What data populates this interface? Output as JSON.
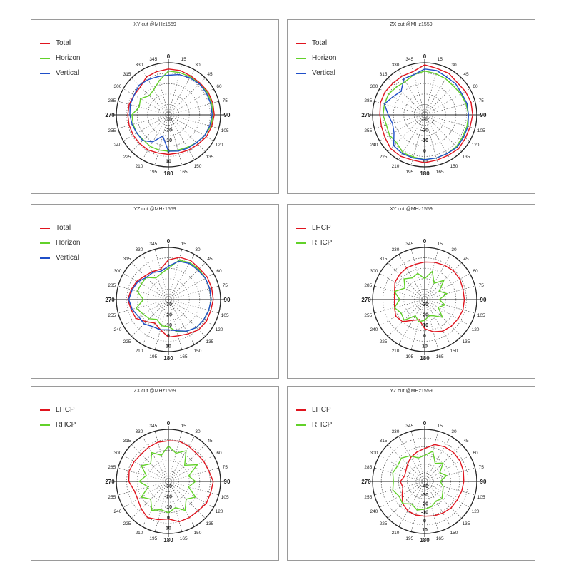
{
  "chart_data": [
    {
      "type": "polar",
      "title": "XY cut @MHz1559",
      "angle_ticks": [
        "0",
        "15",
        "30",
        "45",
        "60",
        "75",
        "90",
        "105",
        "120",
        "135",
        "150",
        "165",
        "180",
        "195",
        "210",
        "225",
        "240",
        "255",
        "270",
        "285",
        "300",
        "315",
        "330",
        "345"
      ],
      "radial_ticks": [
        "-30",
        "-20",
        "-10",
        "0",
        "10"
      ],
      "rlim": [
        -40,
        10
      ],
      "grid": true,
      "legend_position": "top-left",
      "series": [
        {
          "name": "Total",
          "color": "#e0141e",
          "angles": [
            0,
            15,
            30,
            45,
            60,
            75,
            90,
            105,
            120,
            135,
            150,
            165,
            180,
            195,
            210,
            225,
            240,
            255,
            270,
            285,
            300,
            315,
            330,
            345
          ],
          "values": [
            4,
            4,
            3,
            3,
            4,
            4,
            4,
            3,
            2,
            0,
            -1,
            -2,
            -2,
            -2,
            -1,
            -1,
            -1,
            -1,
            -1,
            -1,
            -2,
            -2,
            2,
            3
          ]
        },
        {
          "name": "Horizon",
          "color": "#62d12a",
          "angles": [
            0,
            15,
            30,
            45,
            60,
            75,
            90,
            105,
            120,
            135,
            150,
            165,
            180,
            195,
            210,
            225,
            240,
            255,
            270,
            285,
            300,
            315,
            330,
            345
          ],
          "values": [
            2,
            2,
            2,
            2,
            3,
            3,
            3,
            2,
            0,
            -2,
            -4,
            -5,
            -5,
            -5,
            -5,
            -6,
            -5,
            -5,
            -5,
            -11,
            -9,
            -14,
            -12,
            -6
          ]
        },
        {
          "name": "Vertical",
          "color": "#1f4fc8",
          "angles": [
            0,
            15,
            30,
            45,
            60,
            75,
            90,
            105,
            120,
            135,
            150,
            165,
            180,
            195,
            210,
            225,
            240,
            255,
            270,
            285,
            300,
            315,
            330,
            345
          ],
          "values": [
            -2,
            0,
            1,
            2,
            2,
            2,
            2,
            1,
            0,
            -2,
            -3,
            -4,
            -5,
            -19,
            -10,
            -5,
            -5,
            -4,
            -3,
            -2,
            -2,
            0,
            -1,
            -2
          ]
        }
      ]
    },
    {
      "type": "polar",
      "title": "ZX cut @MHz1559",
      "angle_ticks": [
        "0",
        "15",
        "30",
        "45",
        "60",
        "75",
        "90",
        "105",
        "120",
        "135",
        "150",
        "165",
        "180",
        "195",
        "210",
        "225",
        "240",
        "255",
        "270",
        "285",
        "300",
        "315",
        "330",
        "345"
      ],
      "radial_ticks": [
        "-30",
        "-20",
        "-10",
        "0",
        "10"
      ],
      "rlim": [
        -40,
        10
      ],
      "grid": true,
      "legend_position": "top-left",
      "series": [
        {
          "name": "Total",
          "color": "#e0141e",
          "angles": [
            0,
            15,
            30,
            45,
            60,
            75,
            90,
            105,
            120,
            135,
            150,
            165,
            180,
            195,
            210,
            225,
            240,
            255,
            270,
            285,
            300,
            315,
            330,
            345
          ],
          "values": [
            8,
            6,
            6,
            4,
            5,
            6,
            6,
            5,
            5,
            6,
            5,
            5,
            6,
            5,
            6,
            6,
            4,
            3,
            3,
            4,
            4,
            3,
            3,
            3
          ]
        },
        {
          "name": "Horizon",
          "color": "#62d12a",
          "angles": [
            0,
            15,
            30,
            45,
            60,
            75,
            90,
            105,
            120,
            135,
            150,
            165,
            180,
            195,
            210,
            225,
            240,
            255,
            270,
            285,
            300,
            315,
            330,
            345
          ],
          "values": [
            2,
            1,
            0,
            -1,
            0,
            1,
            2,
            2,
            2,
            3,
            3,
            3,
            3,
            2,
            2,
            -2,
            -1,
            -2,
            0,
            0,
            0,
            -2,
            -3,
            0
          ]
        },
        {
          "name": "Vertical",
          "color": "#1f4fc8",
          "angles": [
            0,
            15,
            30,
            45,
            60,
            75,
            90,
            105,
            120,
            135,
            150,
            165,
            180,
            195,
            210,
            225,
            240,
            255,
            270,
            285,
            300,
            315,
            330,
            345
          ],
          "values": [
            4,
            4,
            2,
            2,
            1,
            2,
            2,
            3,
            3,
            4,
            3,
            3,
            3,
            3,
            3,
            2,
            -6,
            -8,
            -5,
            0,
            -5,
            -8,
            0,
            0
          ]
        }
      ]
    },
    {
      "type": "polar",
      "title": "YZ cut @MHz1559",
      "angle_ticks": [
        "0",
        "15",
        "30",
        "45",
        "60",
        "75",
        "90",
        "105",
        "120",
        "135",
        "150",
        "165",
        "180",
        "195",
        "210",
        "225",
        "240",
        "255",
        "270",
        "285",
        "300",
        "315",
        "330",
        "345"
      ],
      "radial_ticks": [
        "-30",
        "-20",
        "-10",
        "0",
        "10"
      ],
      "rlim": [
        -40,
        10
      ],
      "grid": true,
      "legend_position": "top-left",
      "series": [
        {
          "name": "Total",
          "color": "#e0141e",
          "angles": [
            0,
            15,
            30,
            45,
            60,
            75,
            90,
            105,
            120,
            135,
            150,
            165,
            180,
            195,
            210,
            225,
            240,
            255,
            270,
            285,
            300,
            315,
            330,
            345
          ],
          "values": [
            -2,
            2,
            3,
            2,
            3,
            3,
            3,
            2,
            2,
            1,
            -2,
            -4,
            -4,
            -10,
            -14,
            -10,
            -4,
            -3,
            -1,
            -3,
            -5,
            -8,
            -9,
            -10
          ]
        },
        {
          "name": "Horizon",
          "color": "#62d12a",
          "angles": [
            0,
            15,
            30,
            45,
            60,
            75,
            90,
            105,
            120,
            135,
            150,
            165,
            180,
            195,
            210,
            225,
            240,
            255,
            270,
            285,
            300,
            315,
            330,
            345
          ],
          "values": [
            -10,
            -1,
            1,
            1,
            1,
            1,
            1,
            0,
            -1,
            -2,
            -5,
            -8,
            -14,
            -14,
            -18,
            -14,
            -12,
            -8,
            -16,
            -9,
            -10,
            -10,
            -16,
            -14
          ]
        },
        {
          "name": "Vertical",
          "color": "#1f4fc8",
          "angles": [
            0,
            15,
            30,
            45,
            60,
            75,
            90,
            105,
            120,
            135,
            150,
            165,
            180,
            195,
            210,
            225,
            240,
            255,
            270,
            285,
            300,
            315,
            330,
            345
          ],
          "values": [
            -8,
            -2,
            0,
            0,
            1,
            1,
            1,
            0,
            -1,
            -2,
            -5,
            -9,
            -11,
            -10,
            -10,
            -7,
            -7,
            -4,
            -2,
            -4,
            -6,
            -10,
            -10,
            -12
          ]
        }
      ]
    },
    {
      "type": "polar",
      "title": "XY cut @MHz1559",
      "angle_ticks": [
        "0",
        "15",
        "30",
        "45",
        "60",
        "75",
        "90",
        "105",
        "120",
        "135",
        "150",
        "165",
        "180",
        "195",
        "210",
        "225",
        "240",
        "255",
        "270",
        "285",
        "300",
        "315",
        "330",
        "345"
      ],
      "radial_ticks": [
        "-30",
        "-20",
        "-10",
        "0",
        "10"
      ],
      "rlim": [
        -40,
        10
      ],
      "grid": true,
      "legend_position": "top-left",
      "series": [
        {
          "name": "LHCP",
          "color": "#e0141e",
          "angles": [
            0,
            15,
            30,
            45,
            60,
            75,
            90,
            105,
            120,
            135,
            150,
            165,
            180,
            195,
            210,
            225,
            240,
            255,
            270,
            285,
            300,
            315,
            330,
            345
          ],
          "values": [
            -4,
            -3,
            -2,
            -1,
            -1,
            -2,
            -2,
            -2,
            -3,
            -4,
            -5,
            -8,
            -12,
            -20,
            -17,
            -10,
            -8,
            -10,
            -11,
            -10,
            -7,
            -6,
            -5,
            -5
          ]
        },
        {
          "name": "RHCP",
          "color": "#62d12a",
          "angles": [
            0,
            15,
            30,
            45,
            60,
            75,
            90,
            105,
            120,
            135,
            150,
            165,
            180,
            195,
            210,
            225,
            240,
            255,
            270,
            285,
            300,
            315,
            330,
            345
          ],
          "values": [
            -20,
            -12,
            -22,
            -14,
            -24,
            -18,
            -26,
            -20,
            -25,
            -16,
            -22,
            -24,
            -20,
            -18,
            -22,
            -12,
            -14,
            -10,
            -16,
            -10,
            -18,
            -12,
            -16,
            -14
          ]
        }
      ]
    },
    {
      "type": "polar",
      "title": "ZX cut @MHz1559",
      "angle_ticks": [
        "0",
        "15",
        "30",
        "45",
        "60",
        "75",
        "90",
        "105",
        "120",
        "135",
        "150",
        "165",
        "180",
        "195",
        "210",
        "225",
        "240",
        "255",
        "270",
        "285",
        "300",
        "315",
        "330",
        "345"
      ],
      "radial_ticks": [
        "-30",
        "-20",
        "-10",
        "0",
        "10"
      ],
      "rlim": [
        -40,
        10
      ],
      "grid": true,
      "legend_position": "top-left",
      "series": [
        {
          "name": "LHCP",
          "color": "#e0141e",
          "angles": [
            0,
            15,
            30,
            45,
            60,
            75,
            90,
            105,
            120,
            135,
            150,
            165,
            180,
            195,
            210,
            225,
            240,
            255,
            270,
            285,
            300,
            315,
            330,
            345
          ],
          "values": [
            -1,
            0,
            -1,
            -2,
            -1,
            0,
            3,
            2,
            2,
            0,
            0,
            0,
            -4,
            -2,
            0,
            -3,
            -6,
            -6,
            -2,
            -1,
            -2,
            -3,
            -2,
            -1
          ]
        },
        {
          "name": "RHCP",
          "color": "#62d12a",
          "angles": [
            0,
            15,
            30,
            45,
            60,
            75,
            90,
            105,
            120,
            135,
            150,
            165,
            180,
            195,
            210,
            225,
            240,
            255,
            270,
            285,
            300,
            315,
            330,
            345
          ],
          "values": [
            -6,
            -12,
            -6,
            -18,
            -8,
            -20,
            -14,
            -20,
            -10,
            -16,
            -8,
            -14,
            -10,
            -12,
            -8,
            -16,
            -10,
            -20,
            -12,
            -18,
            -10,
            -16,
            -8,
            -14
          ]
        }
      ]
    },
    {
      "type": "polar",
      "title": "YZ cut @MHz1559",
      "angle_ticks": [
        "0",
        "15",
        "30",
        "45",
        "60",
        "75",
        "90",
        "105",
        "120",
        "135",
        "150",
        "165",
        "180",
        "195",
        "210",
        "225",
        "240",
        "255",
        "270",
        "285",
        "300",
        "315",
        "330",
        "345"
      ],
      "radial_ticks": [
        "-40",
        "-30",
        "-20",
        "-10",
        "0",
        "10"
      ],
      "rlim": [
        -50,
        10
      ],
      "grid": true,
      "legend_position": "top-left",
      "series": [
        {
          "name": "LHCP",
          "color": "#e0141e",
          "angles": [
            0,
            15,
            30,
            45,
            60,
            75,
            90,
            105,
            120,
            135,
            150,
            165,
            180,
            195,
            210,
            225,
            240,
            255,
            270,
            285,
            300,
            315,
            330,
            345
          ],
          "values": [
            -12,
            -6,
            -4,
            -3,
            -3,
            -4,
            -5,
            -6,
            -7,
            -7,
            -8,
            -9,
            -10,
            -10,
            -11,
            -14,
            -20,
            -24,
            -22,
            -26,
            -25,
            -22,
            -18,
            -15
          ]
        },
        {
          "name": "RHCP",
          "color": "#62d12a",
          "angles": [
            0,
            15,
            30,
            45,
            60,
            75,
            90,
            105,
            120,
            135,
            150,
            165,
            180,
            195,
            210,
            225,
            240,
            255,
            270,
            285,
            300,
            315,
            330,
            345
          ],
          "values": [
            -20,
            -14,
            -26,
            -20,
            -30,
            -24,
            -32,
            -28,
            -26,
            -22,
            -24,
            -20,
            -18,
            -16,
            -20,
            -14,
            -16,
            -12,
            -14,
            -12,
            -14,
            -12,
            -16,
            -22
          ]
        }
      ]
    }
  ]
}
